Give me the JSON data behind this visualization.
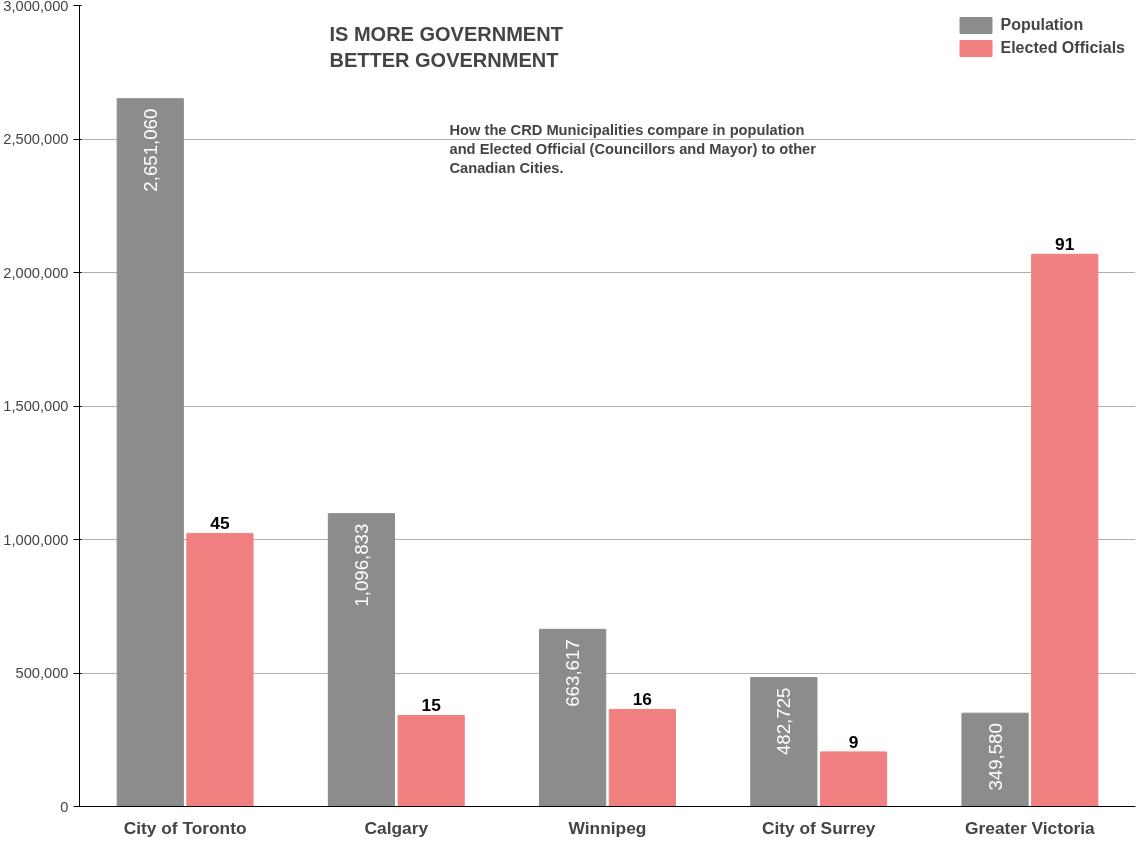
{
  "chart_data": {
    "type": "bar",
    "title": "IS MORE GOVERNMENT\n      BETTER GOVERNMENT",
    "annotations": [
      "How the CRD Municipalities compare in population\nand Elected Official (Councillors and Mayor) to other\nCanadian Cities."
    ],
    "categories": [
      "City of Toronto",
      "Calgary",
      "Winnipeg",
      "City of Surrey",
      "Greater Victoria"
    ],
    "series": [
      {
        "name": "Population",
        "color": "#8c8c8c",
        "values": [
          2651060,
          1096833,
          663617,
          482725,
          349580
        ],
        "value_labels": [
          "2,651,060",
          "1,096,833",
          "663,617",
          "482,725",
          "349,580"
        ]
      },
      {
        "name": "Elected Officials",
        "color": "#f08080",
        "axis": "y2",
        "values": [
          45,
          15,
          16,
          9,
          91
        ],
        "value_labels": [
          "45",
          "15",
          "16",
          "9",
          "91"
        ]
      }
    ],
    "ylim": [
      0,
      3000000
    ],
    "yticks": [
      {
        "value": 0,
        "label": "0"
      },
      {
        "value": 500000,
        "label": "500,000"
      },
      {
        "value": 1000000,
        "label": "1,000,000"
      },
      {
        "value": 1500000,
        "label": "1,500,000"
      },
      {
        "value": 2000000,
        "label": "2,000,000"
      },
      {
        "value": 2500000,
        "label": "2,500,000"
      },
      {
        "value": 3000000,
        "label": "3,000,000"
      }
    ],
    "y2lim": [
      0,
      132
    ],
    "grid": "y",
    "legend": "top right"
  }
}
